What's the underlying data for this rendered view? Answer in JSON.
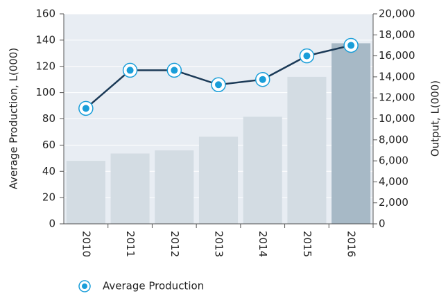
{
  "chart_data": {
    "type": "bar-line",
    "categories": [
      "2010",
      "2011",
      "2012",
      "2013",
      "2014",
      "2015",
      "2016"
    ],
    "ylabel": "Average Production, L(000)",
    "y2label": "Output, L(000)",
    "ylim": [
      0,
      160
    ],
    "yticks": [
      0,
      20,
      40,
      60,
      80,
      100,
      120,
      140,
      160
    ],
    "y2lim": [
      0,
      20000
    ],
    "y2ticks": [
      0,
      {
        "value": 2000,
        "label": "2,000"
      },
      {
        "value": 4000,
        "label": "4,000"
      },
      {
        "value": 6000,
        "label": "6,000"
      },
      {
        "value": 8000,
        "label": "8,000"
      },
      {
        "value": 10000,
        "label": "10,000"
      },
      {
        "value": 12000,
        "label": "12,000"
      },
      {
        "value": 14000,
        "label": "14,000"
      },
      {
        "value": 16000,
        "label": "16,000"
      },
      {
        "value": 18000,
        "label": "18,000"
      },
      {
        "value": 20000,
        "label": "20,000"
      }
    ],
    "grid": true,
    "series": [
      {
        "type": "bar",
        "axis": "y2",
        "colors": [
          "#d3dce3",
          "#d3dce3",
          "#d3dce3",
          "#d3dce3",
          "#d3dce3",
          "#d3dce3",
          "#a7b9c6"
        ],
        "values": [
          6000,
          6700,
          7000,
          8300,
          10200,
          14000,
          17200
        ]
      },
      {
        "type": "line",
        "name": "Average Production",
        "color": "#1b3a57",
        "marker_color": "#1a9ed9",
        "values": [
          88,
          117,
          117,
          106,
          110,
          128,
          136
        ]
      }
    ],
    "legend": "bottom-left"
  }
}
